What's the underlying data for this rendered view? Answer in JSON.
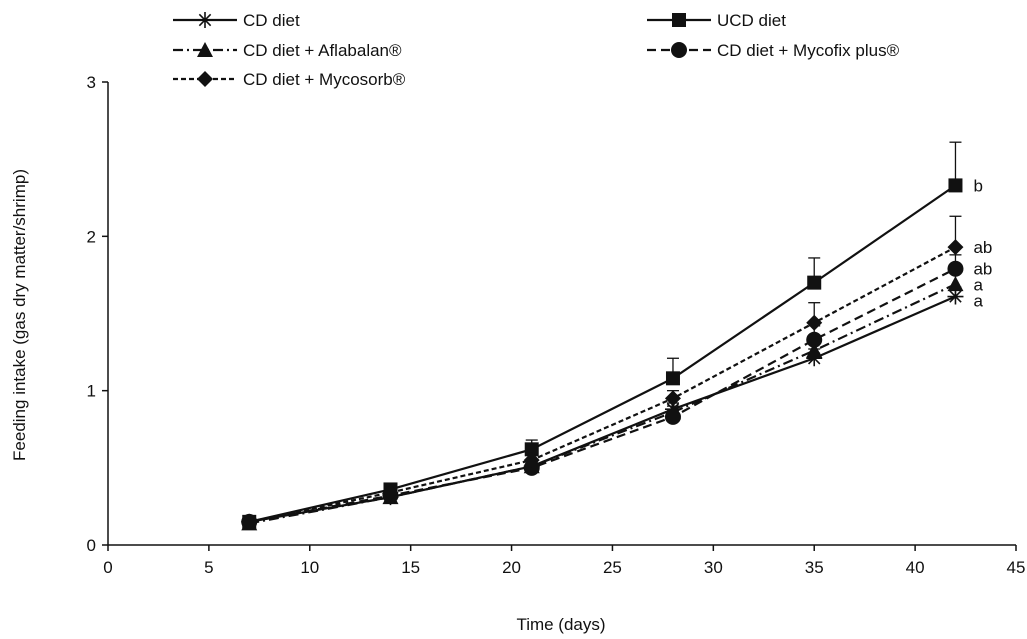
{
  "chart_data": {
    "type": "line",
    "title": "",
    "xlabel": "Time (days)",
    "ylabel": "Feeding intake (gas dry matter/shrimp)",
    "xlim": [
      0,
      45
    ],
    "ylim": [
      0,
      3
    ],
    "xticks": [
      0,
      5,
      10,
      15,
      20,
      25,
      30,
      35,
      40,
      45
    ],
    "yticks": [
      0,
      1,
      2,
      3
    ],
    "grid": false,
    "legend_position": "top",
    "x": [
      7,
      14,
      21,
      28,
      35,
      42
    ],
    "series": [
      {
        "name": "CD diet",
        "marker": "asterisk",
        "dash": "solid",
        "values": [
          0.15,
          0.31,
          0.51,
          0.88,
          1.21,
          1.61
        ],
        "errors": [
          0.02,
          0.02,
          0.03,
          0.04,
          0.06,
          0.06
        ],
        "sig": "a"
      },
      {
        "name": "UCD diet",
        "marker": "square",
        "dash": "solid",
        "values": [
          0.15,
          0.36,
          0.62,
          1.08,
          1.7,
          2.33
        ],
        "errors": [
          0.02,
          0.03,
          0.06,
          0.13,
          0.16,
          0.28
        ],
        "sig": "b"
      },
      {
        "name": "CD diet + Aflabalan®",
        "marker": "triangle",
        "dash": "dashdot",
        "values": [
          0.14,
          0.31,
          0.51,
          0.86,
          1.26,
          1.69
        ],
        "errors": [
          0.02,
          0.02,
          0.03,
          0.04,
          0.07,
          0.07
        ],
        "sig": "a"
      },
      {
        "name": "CD diet + Mycofix plus®",
        "marker": "circle",
        "dash": "dashed",
        "values": [
          0.15,
          0.32,
          0.5,
          0.83,
          1.33,
          1.79
        ],
        "errors": [
          0.02,
          0.02,
          0.03,
          0.04,
          0.09,
          0.09
        ],
        "sig": "ab"
      },
      {
        "name": "CD diet + Mycosorb®",
        "marker": "diamond",
        "dash": "dotted",
        "values": [
          0.15,
          0.34,
          0.55,
          0.95,
          1.44,
          1.93
        ],
        "errors": [
          0.02,
          0.02,
          0.04,
          0.05,
          0.13,
          0.2
        ],
        "sig": "ab"
      }
    ]
  }
}
